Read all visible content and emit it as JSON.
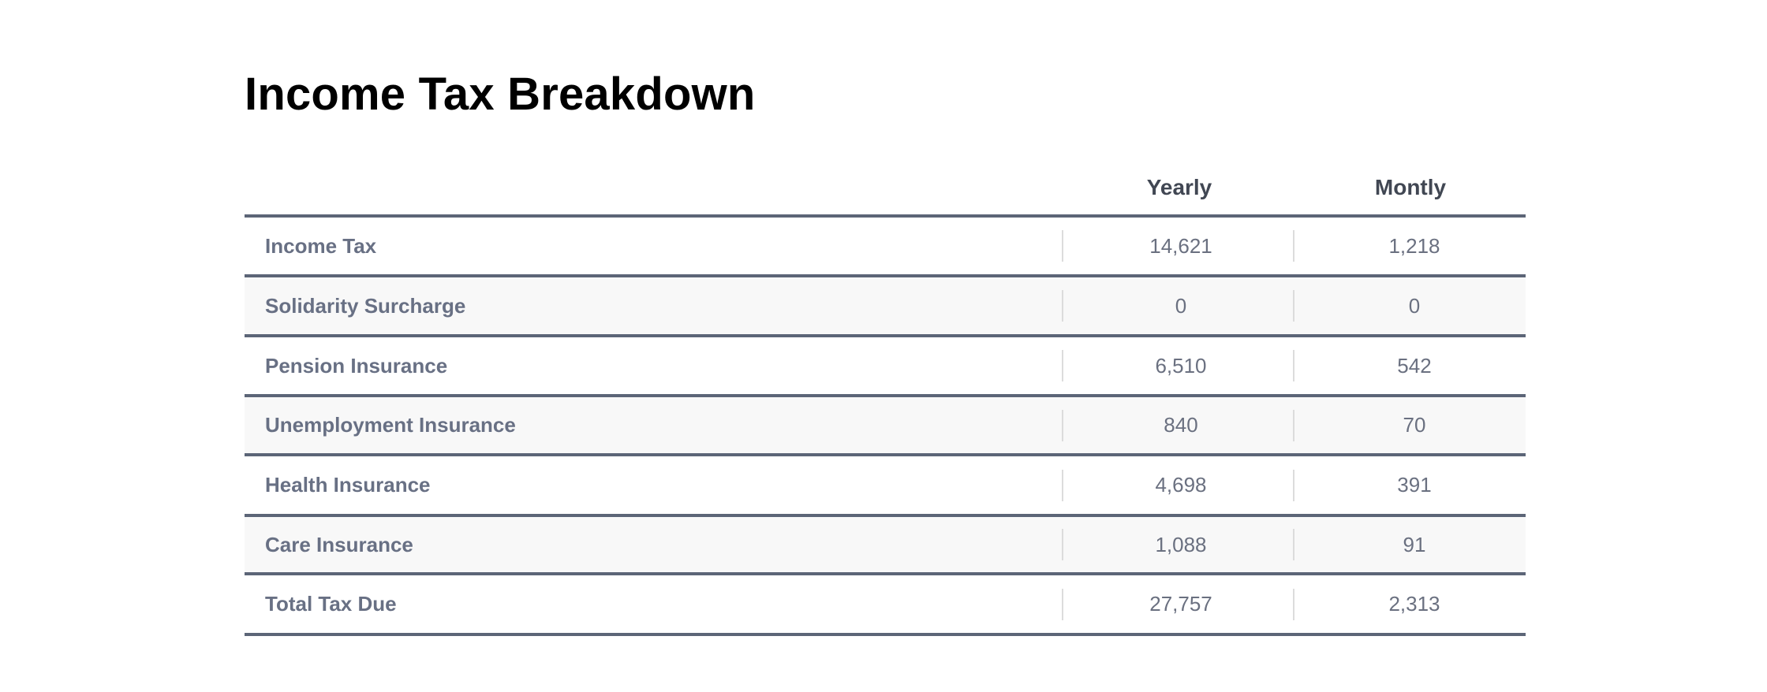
{
  "title": "Income Tax Breakdown",
  "table": {
    "headers": {
      "label": "",
      "yearly": "Yearly",
      "monthly": "Montly"
    },
    "rows": [
      {
        "label": "Income Tax",
        "yearly": "14,621",
        "monthly": "1,218"
      },
      {
        "label": "Solidarity Surcharge",
        "yearly": "0",
        "monthly": "0"
      },
      {
        "label": "Pension Insurance",
        "yearly": "6,510",
        "monthly": "542"
      },
      {
        "label": "Unemployment Insurance",
        "yearly": "840",
        "monthly": "70"
      },
      {
        "label": "Health Insurance",
        "yearly": "4,698",
        "monthly": "391"
      },
      {
        "label": "Care Insurance",
        "yearly": "1,088",
        "monthly": "91"
      },
      {
        "label": "Total Tax Due",
        "yearly": "27,757",
        "monthly": "2,313"
      }
    ]
  },
  "colors": {
    "row_border": "#5c6577",
    "alt_row_background": "#f8f8f8",
    "label_text": "#687084",
    "header_text": "#414753"
  }
}
